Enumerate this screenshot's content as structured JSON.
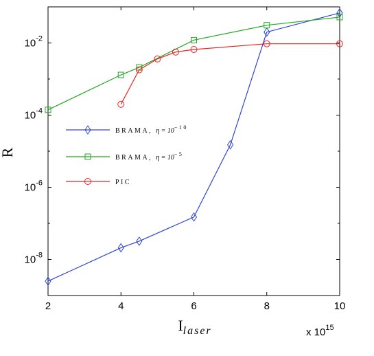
{
  "chart_data": {
    "type": "line",
    "title": "",
    "xlabel": "I",
    "xlabel_sub": "laser",
    "ylabel": "R",
    "x_exponent_label": "x 10",
    "x_exponent": "15",
    "xlim": [
      2,
      10
    ],
    "ylim": [
      1e-09,
      0.1
    ],
    "y_scale": "log",
    "x_ticks": [
      {
        "value": 2,
        "label": "2"
      },
      {
        "value": 4,
        "label": "4"
      },
      {
        "value": 6,
        "label": "6"
      },
      {
        "value": 8,
        "label": "8"
      },
      {
        "value": 10,
        "label": "10"
      }
    ],
    "y_ticks": [
      {
        "value": 1e-08,
        "base": "10",
        "exp": "-8"
      },
      {
        "value": 1e-06,
        "base": "10",
        "exp": "-6"
      },
      {
        "value": 0.0001,
        "base": "10",
        "exp": "-4"
      },
      {
        "value": 0.01,
        "base": "10",
        "exp": "-2"
      }
    ],
    "grid": false,
    "legend_position": "middle-left",
    "series": [
      {
        "name": "BRAMA, ",
        "name_math": "η = 10",
        "name_exp": "−10",
        "color": "#2e44d6",
        "marker": "diamond",
        "x": [
          2,
          4,
          4.5,
          6,
          7,
          8,
          10
        ],
        "y": [
          2.5e-09,
          2.1e-08,
          3.2e-08,
          1.5e-07,
          1.5e-05,
          0.02,
          0.068
        ]
      },
      {
        "name": "BRAMA, ",
        "name_math": "η = 10",
        "name_exp": "−5",
        "color": "#22a822",
        "marker": "square",
        "x": [
          2,
          4,
          4.5,
          6,
          8,
          10
        ],
        "y": [
          0.00014,
          0.0013,
          0.0021,
          0.012,
          0.031,
          0.052
        ]
      },
      {
        "name": "PIC",
        "name_math": "",
        "name_exp": "",
        "color": "#e82626",
        "marker": "circle",
        "x": [
          4,
          4.5,
          5,
          5.5,
          6,
          8,
          10
        ],
        "y": [
          0.0002,
          0.0018,
          0.0036,
          0.0056,
          0.0066,
          0.0095,
          0.0095
        ]
      }
    ]
  }
}
